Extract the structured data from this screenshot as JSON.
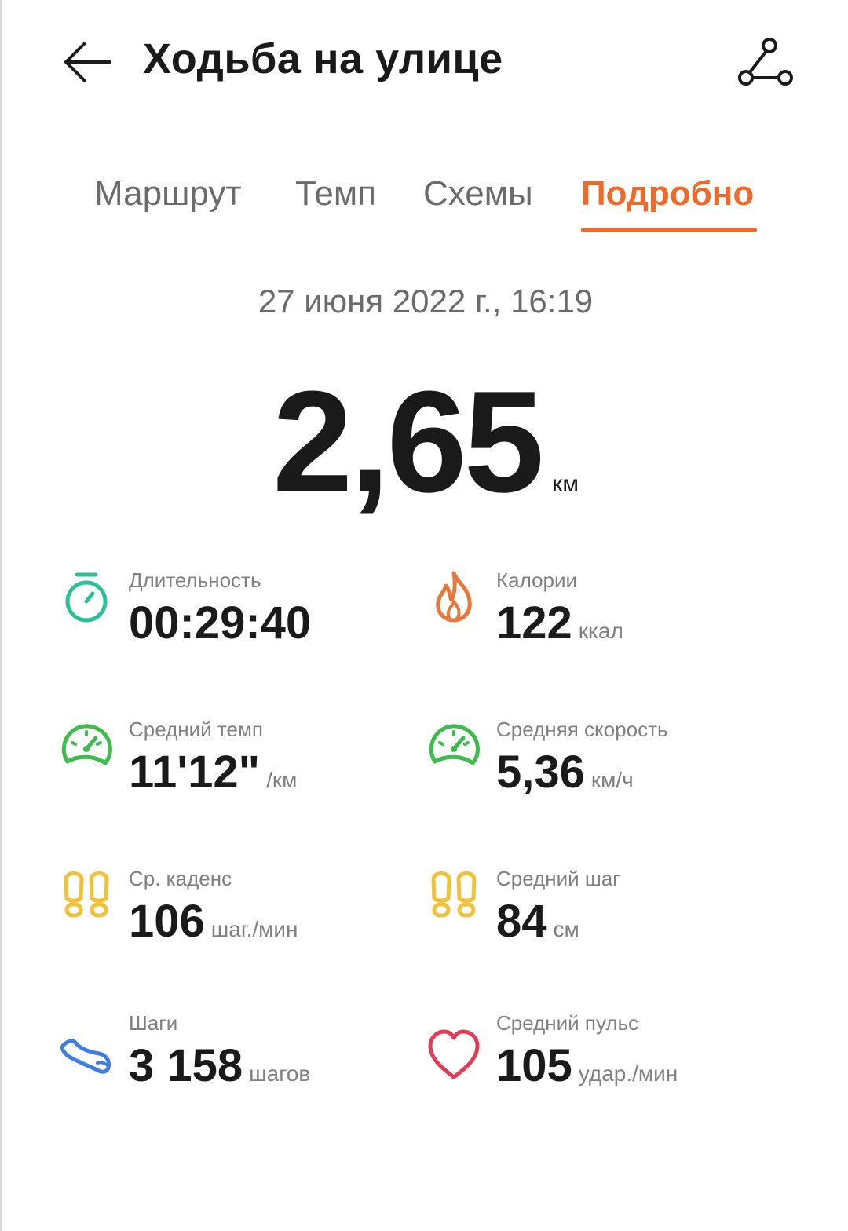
{
  "header": {
    "title": "Ходьба на улице",
    "back_icon": "arrow-left-icon",
    "route_icon": "route-share-icon"
  },
  "tabs": [
    {
      "label": "Маршрут",
      "active": false
    },
    {
      "label": "Темп",
      "active": false
    },
    {
      "label": "Схемы",
      "active": false
    },
    {
      "label": "Подробно",
      "active": true
    }
  ],
  "summary": {
    "date": "27 июня 2022 г., 16:19",
    "distance": "2,65",
    "distance_unit": "км"
  },
  "metrics": [
    {
      "label": "Длительность",
      "value": "00:29:40",
      "unit": "",
      "icon": "stopwatch-icon",
      "color": "#2bbf9a"
    },
    {
      "label": "Калории",
      "value": "122",
      "unit": "ккал",
      "icon": "flame-icon",
      "color": "#e8773a"
    },
    {
      "label": "Средний темп",
      "value": "11'12\"",
      "unit": "/км",
      "icon": "speedometer-icon",
      "color": "#3dbb4d"
    },
    {
      "label": "Средняя скорость",
      "value": "5,36",
      "unit": "км/ч",
      "icon": "speedometer-icon",
      "color": "#3dbb4d"
    },
    {
      "label": "Ср. каденс",
      "value": "106",
      "unit": "шаг./мин",
      "icon": "footprints-icon",
      "color": "#f0c23b"
    },
    {
      "label": "Средний шаг",
      "value": "84",
      "unit": "см",
      "icon": "footprints-icon",
      "color": "#f0c23b"
    },
    {
      "label": "Шаги",
      "value": "3 158",
      "unit": "шагов",
      "icon": "shoe-icon",
      "color": "#3d7ee0"
    },
    {
      "label": "Средний пульс",
      "value": "105",
      "unit": "удар./мин",
      "icon": "heart-icon",
      "color": "#e03c56"
    }
  ],
  "colors": {
    "accent": "#ee6a2b",
    "text": "#1a1a1a",
    "muted": "#808080"
  }
}
